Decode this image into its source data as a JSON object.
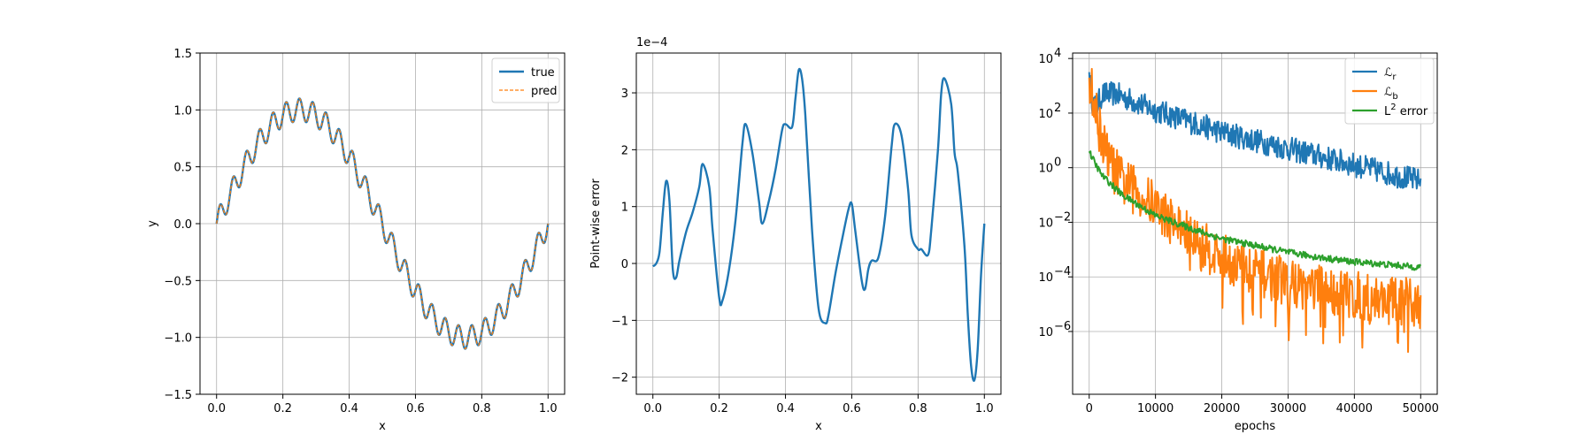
{
  "chart_data": [
    {
      "type": "line",
      "title": "",
      "xlabel": "x",
      "ylabel": "y",
      "xlim": [
        -0.05,
        1.05
      ],
      "ylim": [
        -1.5,
        1.5
      ],
      "xticks": [
        0.0,
        0.2,
        0.4,
        0.6,
        0.8,
        1.0
      ],
      "xtick_labels": [
        "0.0",
        "0.2",
        "0.4",
        "0.6",
        "0.8",
        "1.0"
      ],
      "yticks": [
        -1.5,
        -1.0,
        -0.5,
        0.0,
        0.5,
        1.0,
        1.5
      ],
      "ytick_labels": [
        "−1.5",
        "−1.0",
        "−0.5",
        "0.0",
        "0.5",
        "1.0",
        "1.5"
      ],
      "grid": true,
      "legend": "top-right",
      "function": "y = sin(2πx) + 0.1·sin(50πx)",
      "x_range": [
        0,
        1
      ],
      "series": [
        {
          "name": "true",
          "color": "#1f77b4",
          "style": "solid"
        },
        {
          "name": "pred",
          "color": "#ff7f0e",
          "style": "dashed"
        }
      ]
    },
    {
      "type": "line",
      "title": "",
      "xlabel": "x",
      "ylabel": "Point-wise error",
      "y_multiplier": "1e−4",
      "xlim": [
        -0.05,
        1.05
      ],
      "ylim": [
        -2.3,
        3.7
      ],
      "xticks": [
        0.0,
        0.2,
        0.4,
        0.6,
        0.8,
        1.0
      ],
      "xtick_labels": [
        "0.0",
        "0.2",
        "0.4",
        "0.6",
        "0.8",
        "1.0"
      ],
      "yticks": [
        -2,
        -1,
        0,
        1,
        2,
        3
      ],
      "ytick_labels": [
        "−2",
        "−1",
        "0",
        "1",
        "2",
        "3"
      ],
      "grid": true,
      "series": [
        {
          "name": "",
          "color": "#1f77b4",
          "x": [
            0.0,
            0.01,
            0.02,
            0.03,
            0.04,
            0.05,
            0.06,
            0.07,
            0.08,
            0.1,
            0.12,
            0.14,
            0.15,
            0.17,
            0.18,
            0.2,
            0.21,
            0.23,
            0.25,
            0.27,
            0.28,
            0.3,
            0.32,
            0.33,
            0.35,
            0.37,
            0.39,
            0.4,
            0.42,
            0.43,
            0.44,
            0.45,
            0.46,
            0.48,
            0.5,
            0.52,
            0.53,
            0.55,
            0.57,
            0.59,
            0.6,
            0.61,
            0.63,
            0.64,
            0.65,
            0.66,
            0.68,
            0.7,
            0.72,
            0.73,
            0.75,
            0.77,
            0.78,
            0.8,
            0.81,
            0.83,
            0.84,
            0.86,
            0.87,
            0.88,
            0.9,
            0.91,
            0.92,
            0.94,
            0.95,
            0.96,
            0.97,
            0.98,
            0.99,
            1.0
          ],
          "values": [
            -0.05,
            0.0,
            0.2,
            0.9,
            1.45,
            1.1,
            -0.1,
            -0.25,
            0.05,
            0.55,
            0.9,
            1.35,
            1.75,
            1.35,
            0.6,
            -0.6,
            -0.65,
            -0.1,
            0.8,
            2.1,
            2.45,
            1.95,
            1.1,
            0.7,
            1.1,
            1.65,
            2.35,
            2.45,
            2.4,
            2.9,
            3.4,
            3.25,
            2.6,
            0.6,
            -0.8,
            -1.05,
            -0.9,
            -0.2,
            0.4,
            0.95,
            1.05,
            0.6,
            -0.3,
            -0.45,
            -0.1,
            0.05,
            0.1,
            0.8,
            2.05,
            2.45,
            2.25,
            1.3,
            0.5,
            0.25,
            0.25,
            0.15,
            0.6,
            2.0,
            3.0,
            3.25,
            2.8,
            1.95,
            1.6,
            0.3,
            -0.9,
            -1.8,
            -2.05,
            -1.5,
            -0.2,
            0.7
          ]
        }
      ]
    },
    {
      "type": "line",
      "title": "",
      "xlabel": "epochs",
      "ylabel": "",
      "yscale": "log",
      "xlim": [
        -2500,
        52500
      ],
      "ylim_log10": [
        -8.3,
        4.2
      ],
      "xticks": [
        0,
        10000,
        20000,
        30000,
        40000,
        50000
      ],
      "xtick_labels": [
        "0",
        "10000",
        "20000",
        "30000",
        "40000",
        "50000"
      ],
      "yticks_log10": [
        -6,
        -4,
        -2,
        0,
        2,
        4
      ],
      "ytick_labels": [
        "10",
        "10",
        "10",
        "10",
        "10",
        "10"
      ],
      "ytick_exponents": [
        "−6",
        "−4",
        "−2",
        "0",
        "2",
        "4"
      ],
      "grid": true,
      "legend": "top-right",
      "series": [
        {
          "name": "ℒ",
          "name_sub": "r",
          "color": "#1f77b4",
          "noise_log10": 0.45,
          "x": [
            0,
            500,
            1000,
            2000,
            4000,
            10000,
            20000,
            30000,
            40000,
            50000
          ],
          "values_log10": [
            3.5,
            2.4,
            2.2,
            2.7,
            2.7,
            2.1,
            1.3,
            0.7,
            0.1,
            -0.5
          ]
        },
        {
          "name": "ℒ",
          "name_sub": "b",
          "color": "#ff7f0e",
          "noise_log10": 0.9,
          "x": [
            0,
            1000,
            2000,
            3000,
            5000,
            10000,
            15000,
            20000,
            25000,
            30000,
            40000,
            50000
          ],
          "values_log10": [
            3.3,
            2.0,
            1.0,
            0.2,
            -0.5,
            -1.4,
            -2.5,
            -3.3,
            -3.8,
            -4.2,
            -4.7,
            -5.0
          ]
        },
        {
          "name": "L",
          "name_sup": "2",
          "name_suffix": " error",
          "color": "#2ca02c",
          "noise_log10": 0.12,
          "x": [
            0,
            1000,
            2000,
            5000,
            10000,
            15000,
            20000,
            25000,
            30000,
            35000,
            40000,
            45000,
            50000
          ],
          "values_log10": [
            0.6,
            0.1,
            -0.3,
            -1.0,
            -1.75,
            -2.2,
            -2.6,
            -2.85,
            -3.1,
            -3.3,
            -3.45,
            -3.55,
            -3.65
          ]
        }
      ]
    }
  ]
}
